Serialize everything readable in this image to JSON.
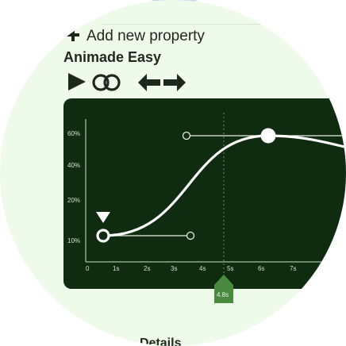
{
  "toolbar": {
    "add_property_label": "Add new property",
    "title": "Animade Easy"
  },
  "icons": {
    "play": "play-icon",
    "link": "link-icon",
    "back": "arrow-left-icon",
    "forward": "arrow-right-icon",
    "add": "plus-icon"
  },
  "chart": {
    "y_ticks": [
      "60%",
      "40%",
      "20%",
      "10%"
    ],
    "x_ticks": [
      "0",
      "1s",
      "2s",
      "3s",
      "4s",
      "5s",
      "6s",
      "7s"
    ],
    "playhead_label": "4.8s"
  },
  "footer": {
    "details_label": "Details"
  },
  "colors": {
    "background": "#eefbea",
    "chart_bg": "#0f2b10",
    "accent": "#4a8a3f",
    "text": "#1c2a1c"
  }
}
